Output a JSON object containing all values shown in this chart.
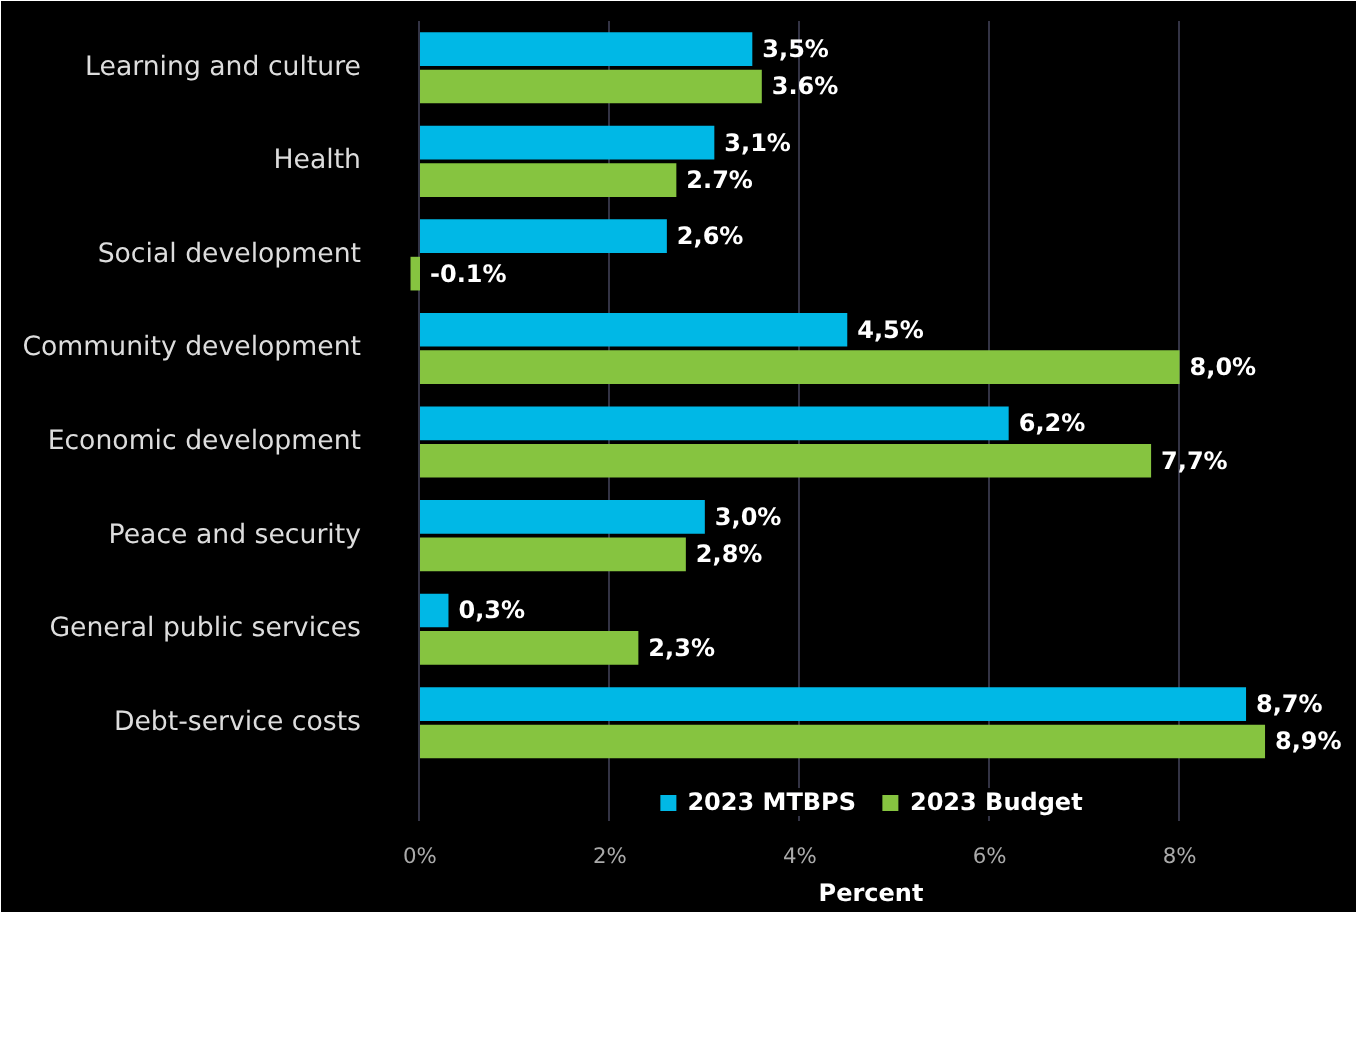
{
  "chart_data": {
    "type": "bar",
    "orientation": "horizontal",
    "xlabel": "Percent",
    "categories": [
      "Learning and culture",
      "Health",
      "Social development",
      "Community development",
      "Economic development",
      "Peace and security",
      "General public services",
      "Debt-service costs"
    ],
    "series": [
      {
        "name": "2023 MTBPS",
        "color": "#00b8e6",
        "values": [
          3.5,
          3.1,
          2.6,
          4.5,
          6.2,
          3.0,
          0.3,
          8.7
        ],
        "value_labels": [
          "3,5%",
          "3,1%",
          "2,6%",
          "4,5%",
          "6,2%",
          "3,0%",
          "0,3%",
          "8,7%"
        ]
      },
      {
        "name": "2023 Budget",
        "color": "#86c440",
        "values": [
          3.6,
          2.7,
          -0.1,
          8.0,
          7.7,
          2.8,
          2.3,
          8.9
        ],
        "value_labels": [
          "3.6%",
          "2.7%",
          "-0.1%",
          "8,0%",
          "7,7%",
          "2,8%",
          "2,3%",
          "8,9%"
        ]
      }
    ],
    "xlim": [
      -0.2,
      9.7
    ],
    "xticks": [
      {
        "value": 0,
        "label": "0%"
      },
      {
        "value": 2,
        "label": "2%"
      },
      {
        "value": 4,
        "label": "4%"
      },
      {
        "value": 6,
        "label": "6%"
      },
      {
        "value": 8,
        "label": "8%"
      }
    ],
    "grid": "x",
    "legend": "bottom"
  }
}
